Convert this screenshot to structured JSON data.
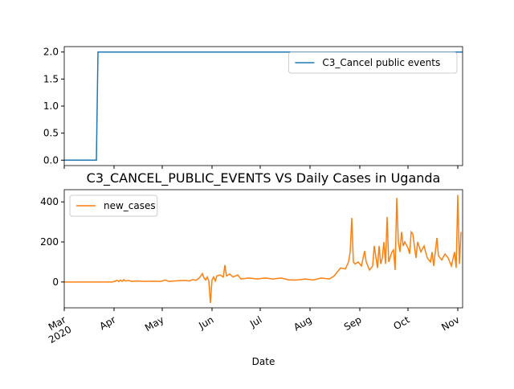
{
  "chart_data": [
    {
      "type": "line",
      "xlim": [
        0,
        248
      ],
      "xticks": [
        0,
        31,
        61,
        92,
        122,
        153,
        184,
        214,
        245
      ],
      "ylim": [
        -0.1,
        2.1
      ],
      "yticks": [
        {
          "value": 0,
          "label": "0.0"
        },
        {
          "value": 0.5,
          "label": "0.5"
        },
        {
          "value": 1,
          "label": "1.0"
        },
        {
          "value": 1.5,
          "label": "1.5"
        },
        {
          "value": 2,
          "label": "2.0"
        }
      ],
      "legend": "upper right",
      "series": [
        {
          "name": "C3_Cancel public events",
          "color": "#1f77b4",
          "x": [
            0,
            20,
            21,
            248
          ],
          "values": [
            0,
            0,
            2,
            2
          ]
        }
      ]
    },
    {
      "type": "line",
      "title": "C3_CANCEL_PUBLIC_EVENTS VS Daily Cases in Uganda",
      "xlabel": "Date",
      "xlim": [
        0,
        248
      ],
      "xticks": [
        {
          "value": 0,
          "label": "Mar\n2020"
        },
        {
          "value": 31,
          "label": "Apr"
        },
        {
          "value": 61,
          "label": "May"
        },
        {
          "value": 92,
          "label": "Jun"
        },
        {
          "value": 122,
          "label": "Jul"
        },
        {
          "value": 153,
          "label": "Aug"
        },
        {
          "value": 184,
          "label": "Sep"
        },
        {
          "value": 214,
          "label": "Oct"
        },
        {
          "value": 245,
          "label": "Nov"
        }
      ],
      "ylim": [
        -129,
        461
      ],
      "yticks": [
        0,
        200,
        400
      ],
      "legend": "upper left",
      "series": [
        {
          "name": "new_cases",
          "color": "#ff7f0e",
          "x": [
            0,
            10,
            20,
            30,
            33,
            34,
            35,
            36,
            37,
            38,
            40,
            42,
            45,
            50,
            55,
            60,
            63,
            65,
            70,
            75,
            78,
            80,
            82,
            84,
            85,
            86,
            87,
            88,
            89,
            90,
            91,
            92,
            93,
            94,
            95,
            97,
            99,
            100,
            101,
            103,
            105,
            108,
            110,
            115,
            120,
            125,
            130,
            135,
            140,
            145,
            150,
            155,
            160,
            165,
            168,
            170,
            172,
            175,
            177,
            178,
            179,
            180,
            181,
            183,
            185,
            187,
            188,
            190,
            192,
            193,
            195,
            196,
            197,
            198,
            199,
            200,
            201,
            202,
            204,
            205,
            206,
            207,
            208,
            209,
            210,
            211,
            212,
            214,
            215,
            216,
            217,
            219,
            220,
            222,
            224,
            226,
            228,
            229,
            230,
            232,
            233,
            235,
            237,
            239,
            241,
            243,
            244,
            245,
            246,
            247
          ],
          "values": [
            0,
            0,
            0,
            0,
            8,
            2,
            10,
            3,
            12,
            5,
            8,
            3,
            5,
            3,
            4,
            3,
            10,
            3,
            6,
            8,
            5,
            12,
            8,
            20,
            30,
            42,
            20,
            10,
            25,
            5,
            -105,
            10,
            25,
            5,
            30,
            35,
            25,
            85,
            30,
            40,
            25,
            35,
            15,
            20,
            15,
            20,
            15,
            20,
            10,
            10,
            15,
            10,
            20,
            15,
            30,
            50,
            70,
            65,
            100,
            150,
            320,
            100,
            90,
            100,
            80,
            155,
            100,
            60,
            80,
            180,
            70,
            180,
            90,
            120,
            200,
            90,
            325,
            100,
            150,
            160,
            60,
            420,
            200,
            150,
            250,
            180,
            200,
            170,
            140,
            250,
            240,
            120,
            200,
            150,
            180,
            120,
            100,
            150,
            80,
            220,
            130,
            110,
            140,
            120,
            80,
            150,
            70,
            435,
            90,
            250
          ]
        }
      ]
    }
  ]
}
